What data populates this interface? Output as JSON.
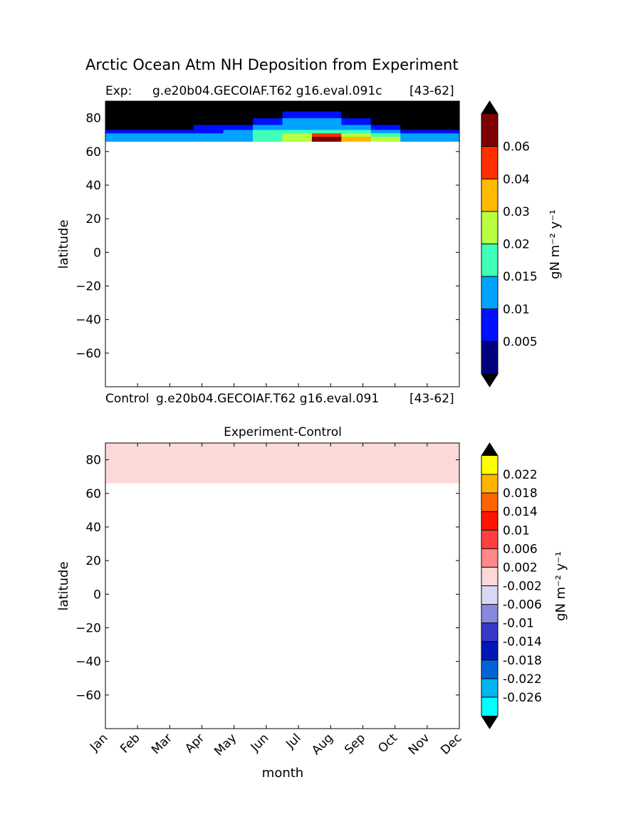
{
  "figure": {
    "title": "Arctic Ocean Atm NH Deposition from Experiment"
  },
  "chart_data": [
    {
      "type": "heatmap",
      "panel": "top",
      "subtitle_left": "Exp:",
      "subtitle_mid": "g.e20b04.GECOIAF.T62 g16.eval.091c",
      "subtitle_right": "[43-62]",
      "bottom_left": "Control",
      "bottom_mid": "g.e20b04.GECOIAF.T62 g16.eval.091",
      "bottom_right": "[43-62]",
      "ylabel": "latitude",
      "ylim": [
        -80,
        90
      ],
      "yticks": [
        "80",
        "60",
        "40",
        "20",
        "0",
        "−20",
        "−40",
        "−60"
      ],
      "ytick_values": [
        80,
        60,
        40,
        20,
        0,
        -20,
        -40,
        -60
      ],
      "x_months": [
        "Jan",
        "Feb",
        "Mar",
        "Apr",
        "May",
        "Jun",
        "Jul",
        "Aug",
        "Sep",
        "Oct",
        "Nov",
        "Dec"
      ],
      "data_lat_range": [
        66,
        90
      ],
      "colorbar": {
        "label": "gN m⁻² y⁻¹",
        "tick_labels": [
          "0.005",
          "0.01",
          "0.015",
          "0.02",
          "0.03",
          "0.04",
          "0.06"
        ],
        "colors": [
          "#00007f",
          "#0010ff",
          "#00a4ff",
          "#40ffb7",
          "#b7ff40",
          "#ffb900",
          "#ff3000",
          "#7f0000"
        ],
        "under_color": "#000000",
        "over_color": "#000000"
      },
      "bands": [
        {
          "lat": [
            66,
            69
          ],
          "levels": [
            2,
            2,
            2,
            2,
            2,
            3,
            4,
            7,
            5,
            4,
            2,
            2
          ]
        },
        {
          "lat": [
            69,
            71
          ],
          "levels": [
            2,
            2,
            2,
            2,
            2,
            3,
            4,
            6,
            4,
            3,
            2,
            2
          ]
        },
        {
          "lat": [
            71,
            73
          ],
          "levels": [
            1,
            1,
            1,
            1,
            2,
            3,
            3,
            3,
            3,
            2,
            1,
            1
          ]
        },
        {
          "lat": [
            73,
            76
          ],
          "levels": [
            0,
            0,
            0,
            1,
            1,
            2,
            2,
            2,
            2,
            1,
            0,
            0
          ]
        },
        {
          "lat": [
            76,
            80
          ],
          "levels": [
            0,
            0,
            0,
            0,
            0,
            1,
            2,
            2,
            1,
            0,
            0,
            0
          ]
        },
        {
          "lat": [
            80,
            84
          ],
          "levels": [
            0,
            0,
            0,
            0,
            0,
            0,
            1,
            1,
            0,
            0,
            0,
            0
          ]
        },
        {
          "lat": [
            84,
            90
          ],
          "levels": [
            0,
            0,
            0,
            0,
            0,
            0,
            0,
            0,
            0,
            0,
            0,
            0
          ]
        }
      ]
    },
    {
      "type": "heatmap",
      "panel": "bottom",
      "subtitle": "Experiment-Control",
      "ylabel": "latitude",
      "xlabel": "month",
      "ylim": [
        -80,
        90
      ],
      "yticks": [
        "80",
        "60",
        "40",
        "20",
        "0",
        "−20",
        "−40",
        "−60"
      ],
      "ytick_values": [
        80,
        60,
        40,
        20,
        0,
        -20,
        -40,
        -60
      ],
      "categories": [
        "Jan",
        "Feb",
        "Mar",
        "Apr",
        "May",
        "Jun",
        "Jul",
        "Aug",
        "Sep",
        "Oct",
        "Nov",
        "Dec"
      ],
      "data_lat_range": [
        66,
        90
      ],
      "fill_color": "#fdd8d8",
      "colorbar": {
        "label": "gN m⁻² y⁻¹",
        "tick_labels": [
          "-0.026",
          "-0.022",
          "-0.018",
          "-0.014",
          "-0.01",
          "-0.006",
          "-0.002",
          "0.002",
          "0.006",
          "0.01",
          "0.014",
          "0.018",
          "0.022"
        ],
        "colors": [
          "#00ffff",
          "#00b4ef",
          "#0064d8",
          "#0018b8",
          "#3838c8",
          "#8888e0",
          "#d8d8f4",
          "#fdd8d8",
          "#ff8888",
          "#ff4040",
          "#ff1400",
          "#ff6400",
          "#ffb400",
          "#ffff00"
        ],
        "under_color": "#000000",
        "over_color": "#000000"
      }
    }
  ]
}
